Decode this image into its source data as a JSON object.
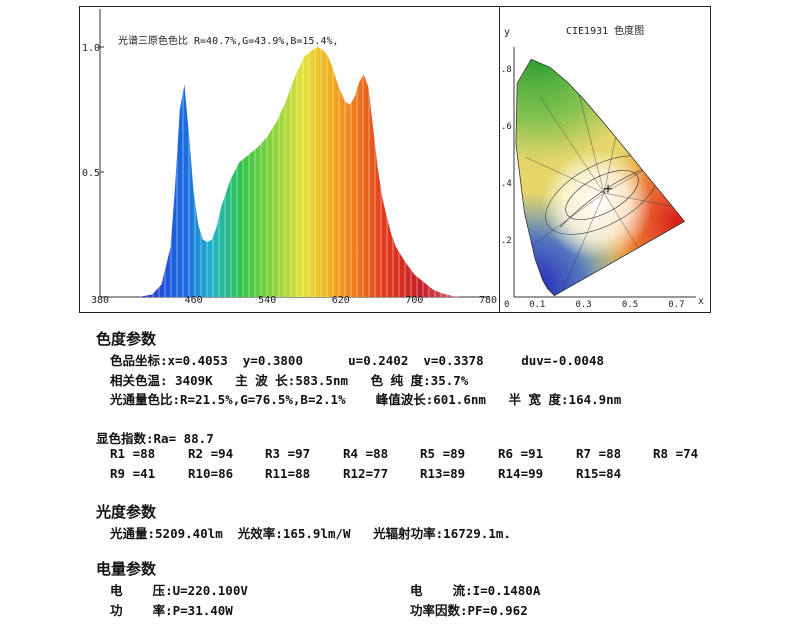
{
  "chart_data": [
    {
      "type": "area",
      "title": "光谱三原色色比  R=40.7%,G=43.9%,B=15.4%,",
      "xlabel": "",
      "ylabel": "",
      "xlim": [
        380,
        780
      ],
      "ylim": [
        0,
        1.0
      ],
      "x_ticks": [
        "380",
        "460",
        "540",
        "620",
        "700",
        "780"
      ],
      "y_ticks": [
        "1.0",
        "0.5"
      ],
      "series": [
        {
          "name": "spectrum",
          "x": [
            380,
            400,
            415,
            425,
            435,
            440,
            445,
            450,
            455,
            460,
            465,
            470,
            475,
            480,
            485,
            490,
            500,
            510,
            520,
            530,
            540,
            550,
            560,
            570,
            580,
            590,
            595,
            600,
            605,
            610,
            615,
            620,
            625,
            630,
            635,
            640,
            645,
            650,
            655,
            660,
            665,
            670,
            675,
            680,
            690,
            700,
            710,
            720,
            730,
            740,
            750,
            760,
            770,
            780
          ],
          "values": [
            0,
            0,
            0.01,
            0.05,
            0.2,
            0.45,
            0.75,
            0.85,
            0.65,
            0.42,
            0.29,
            0.23,
            0.22,
            0.23,
            0.28,
            0.36,
            0.47,
            0.54,
            0.57,
            0.6,
            0.64,
            0.7,
            0.78,
            0.88,
            0.96,
            0.99,
            1.0,
            0.99,
            0.97,
            0.93,
            0.87,
            0.82,
            0.78,
            0.77,
            0.8,
            0.86,
            0.89,
            0.84,
            0.68,
            0.52,
            0.4,
            0.32,
            0.25,
            0.2,
            0.14,
            0.09,
            0.06,
            0.03,
            0.015,
            0.005,
            0,
            0,
            0,
            0
          ]
        }
      ]
    },
    {
      "type": "scatter",
      "title": "CIE1931 色度图",
      "xlabel": "x",
      "ylabel": "y",
      "xlim": [
        0,
        0.8
      ],
      "ylim": [
        0,
        0.9
      ],
      "x_ticks": [
        "0",
        "0.1",
        "0.3",
        "0.5",
        "0.7"
      ],
      "y_ticks": [
        ".8",
        ".6",
        ".4",
        ".2"
      ],
      "series": [
        {
          "name": "measured point",
          "x": [
            0.4053
          ],
          "values": [
            0.38
          ]
        }
      ]
    }
  ],
  "sections": {
    "chroma": {
      "title": "色度参数",
      "lines": [
        "色品坐标:x=0.4053  y=0.3800      u=0.2402  v=0.3378     duv=-0.0048",
        "相关色温: 3409K   主 波 长:583.5nm   色 纯 度:35.7%",
        "光通量色比:R=21.5%,G=76.5%,B=2.1%    峰值波长:601.6nm   半 宽 度:164.9nm"
      ]
    },
    "cri": {
      "title": "显色指数:Ra= 88.7",
      "row1": [
        "R1 =88",
        "R2 =94",
        "R3 =97",
        "R4 =88",
        "R5 =89",
        "R6 =91",
        "R7 =88",
        "R8 =74"
      ],
      "row2": [
        "R9 =41",
        "R10=86",
        "R11=88",
        "R12=77",
        "R13=89",
        "R14=99",
        "R15=84"
      ]
    },
    "photometric": {
      "title": "光度参数",
      "line": "光通量:5209.40lm  光效率:165.9lm/W   光辐射功率:16729.1m."
    },
    "electric": {
      "title": "电量参数",
      "voltage": "电    压:U=220.100V",
      "current": "电    流:I=0.1480A",
      "power": "功    率:P=31.40W",
      "power_factor": "功率因数:PF=0.962"
    }
  }
}
